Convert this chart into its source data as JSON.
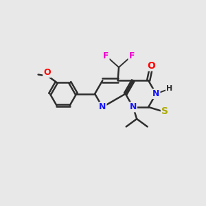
{
  "bg_color": "#e8e8e8",
  "bond_color": "#2d2d2d",
  "atom_colors": {
    "N": "#1414ff",
    "O": "#ff0000",
    "F": "#ee00cc",
    "S": "#aaaa00",
    "H": "#2d2d2d",
    "C": "#2d2d2d"
  },
  "figsize": [
    3.0,
    3.0
  ],
  "dpi": 100
}
